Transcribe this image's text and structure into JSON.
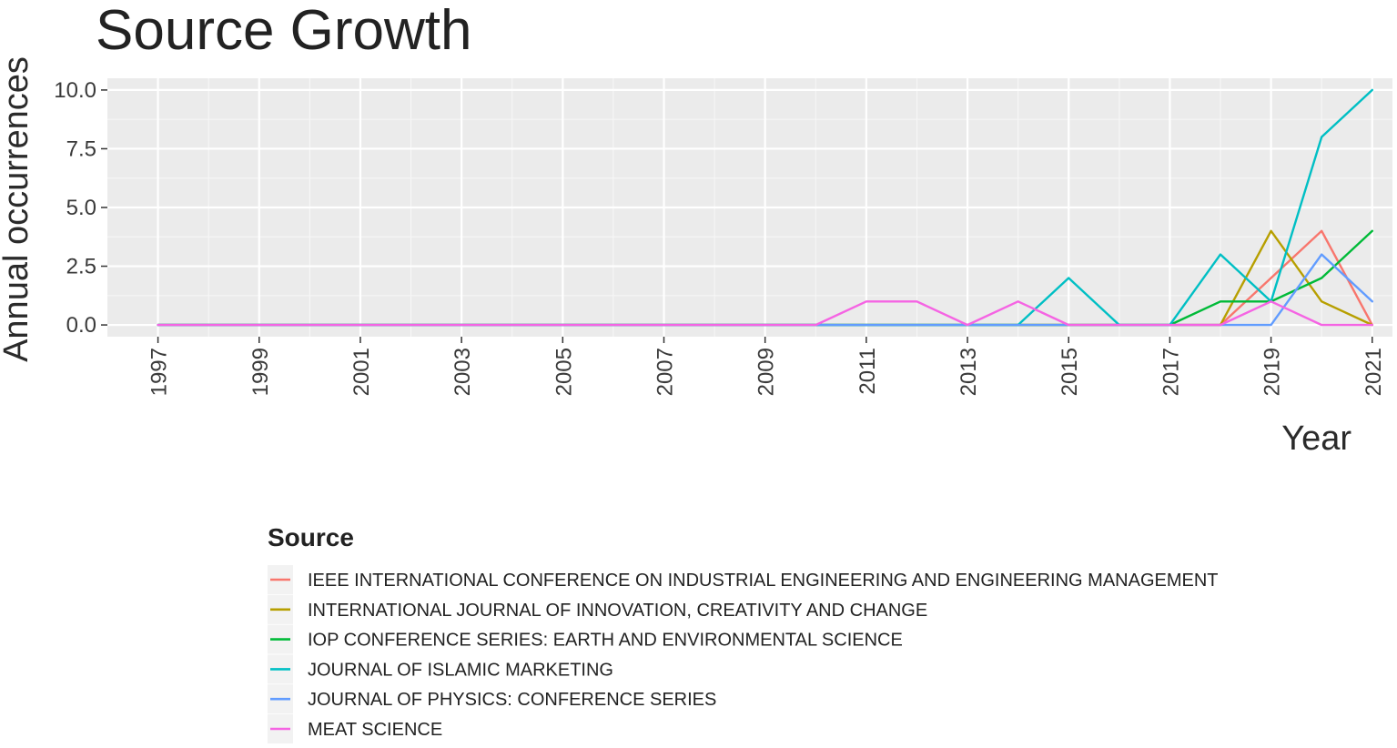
{
  "chart_data": {
    "type": "line",
    "title": "Source Growth",
    "xlabel": "Year",
    "ylabel": "Annual occurrences",
    "xlim": [
      1996,
      2021.4
    ],
    "ylim": [
      -0.5,
      10.5
    ],
    "x_ticks": [
      1997,
      1999,
      2001,
      2003,
      2005,
      2007,
      2009,
      2011,
      2013,
      2015,
      2017,
      2019,
      2021
    ],
    "y_ticks": [
      0,
      2.5,
      5,
      7.5,
      10
    ],
    "y_tick_labels": [
      "0.0",
      "2.5",
      "5.0",
      "7.5",
      "10.0"
    ],
    "grid": true,
    "legend_title": "Source",
    "legend_position": "bottom",
    "x": [
      1997,
      1998,
      1999,
      2000,
      2001,
      2002,
      2003,
      2004,
      2005,
      2006,
      2007,
      2008,
      2009,
      2010,
      2011,
      2012,
      2013,
      2014,
      2015,
      2016,
      2017,
      2018,
      2019,
      2020,
      2021
    ],
    "series": [
      {
        "name": "IEEE INTERNATIONAL CONFERENCE ON INDUSTRIAL ENGINEERING AND ENGINEERING MANAGEMENT",
        "color": "#F8766D",
        "values": [
          0,
          0,
          0,
          0,
          0,
          0,
          0,
          0,
          0,
          0,
          0,
          0,
          0,
          0,
          0,
          0,
          0,
          0,
          0,
          0,
          0,
          0,
          2,
          4,
          0
        ]
      },
      {
        "name": "INTERNATIONAL JOURNAL OF INNOVATION, CREATIVITY AND CHANGE",
        "color": "#B79F00",
        "values": [
          0,
          0,
          0,
          0,
          0,
          0,
          0,
          0,
          0,
          0,
          0,
          0,
          0,
          0,
          0,
          0,
          0,
          0,
          0,
          0,
          0,
          0,
          4,
          1,
          0
        ]
      },
      {
        "name": "IOP CONFERENCE SERIES: EARTH AND ENVIRONMENTAL SCIENCE",
        "color": "#00BA38",
        "values": [
          0,
          0,
          0,
          0,
          0,
          0,
          0,
          0,
          0,
          0,
          0,
          0,
          0,
          0,
          0,
          0,
          0,
          0,
          0,
          0,
          0,
          1,
          1,
          2,
          4
        ]
      },
      {
        "name": "JOURNAL OF ISLAMIC MARKETING",
        "color": "#00BFC4",
        "values": [
          0,
          0,
          0,
          0,
          0,
          0,
          0,
          0,
          0,
          0,
          0,
          0,
          0,
          0,
          0,
          0,
          0,
          0,
          2,
          0,
          0,
          3,
          1,
          8,
          10
        ]
      },
      {
        "name": "JOURNAL OF PHYSICS: CONFERENCE SERIES",
        "color": "#619CFF",
        "values": [
          0,
          0,
          0,
          0,
          0,
          0,
          0,
          0,
          0,
          0,
          0,
          0,
          0,
          0,
          0,
          0,
          0,
          0,
          0,
          0,
          0,
          0,
          0,
          3,
          1
        ]
      },
      {
        "name": "MEAT SCIENCE",
        "color": "#F564E3",
        "values": [
          0,
          0,
          0,
          0,
          0,
          0,
          0,
          0,
          0,
          0,
          0,
          0,
          0,
          0,
          1,
          1,
          0,
          1,
          0,
          0,
          0,
          0,
          1,
          0,
          0
        ]
      }
    ]
  }
}
